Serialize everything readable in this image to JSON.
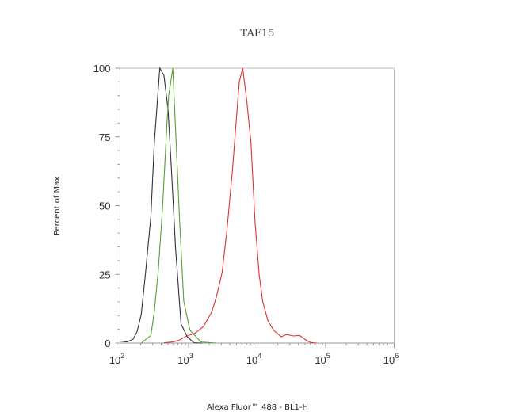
{
  "chart_data": {
    "type": "line",
    "title": "TAF15",
    "xlabel": "Alexa Fluor™ 488 - BL1-H",
    "ylabel": "Percent of Max",
    "xscale": "log",
    "xlim": [
      100,
      1000000
    ],
    "ylim": [
      0,
      100
    ],
    "grid": false,
    "legend": "none",
    "x_ticks": [
      {
        "base": "10",
        "exp": "2"
      },
      {
        "base": "10",
        "exp": "3"
      },
      {
        "base": "10",
        "exp": "4"
      },
      {
        "base": "10",
        "exp": "5"
      },
      {
        "base": "10",
        "exp": "6"
      }
    ],
    "y_ticks": [
      "0",
      "25",
      "50",
      "75",
      "100"
    ],
    "series": [
      {
        "color": "#333333",
        "log10_x": [
          2.0,
          2.1,
          2.19,
          2.25,
          2.31,
          2.37,
          2.45,
          2.5,
          2.58,
          2.64,
          2.7,
          2.75,
          2.81,
          2.89,
          2.98,
          3.08,
          3.2
        ],
        "y": [
          0.7,
          0.4,
          1.4,
          4.2,
          10.5,
          25,
          46,
          73,
          100,
          97.4,
          85,
          63,
          34.5,
          7,
          2.3,
          0.1,
          0
        ]
      },
      {
        "color": "#5a9e32",
        "log10_x": [
          2.31,
          2.45,
          2.5,
          2.56,
          2.62,
          2.68,
          2.71,
          2.77,
          2.81,
          2.87,
          2.93,
          3.02,
          3.18,
          3.4
        ],
        "y": [
          0,
          2.8,
          11.4,
          26.8,
          49,
          77.7,
          90,
          100,
          77.7,
          44,
          15.3,
          4.7,
          0.4,
          0
        ]
      },
      {
        "color": "#e03030",
        "log10_x": [
          2.64,
          2.77,
          2.86,
          2.95,
          3.1,
          3.22,
          3.34,
          3.41,
          3.49,
          3.56,
          3.64,
          3.7,
          3.74,
          3.79,
          3.85,
          3.91,
          3.97,
          4.03,
          4.08,
          4.16,
          4.24,
          4.35,
          4.43,
          4.53,
          4.62,
          4.7,
          4.78,
          4.87
        ],
        "y": [
          0.1,
          0.4,
          1,
          2.3,
          3.7,
          6.1,
          11.4,
          17.2,
          25.8,
          41,
          63,
          82.5,
          95,
          100,
          88,
          73,
          44,
          25,
          15.3,
          8,
          4.7,
          2.3,
          3.1,
          2.6,
          2.8,
          1.3,
          0.2,
          0
        ]
      }
    ]
  }
}
